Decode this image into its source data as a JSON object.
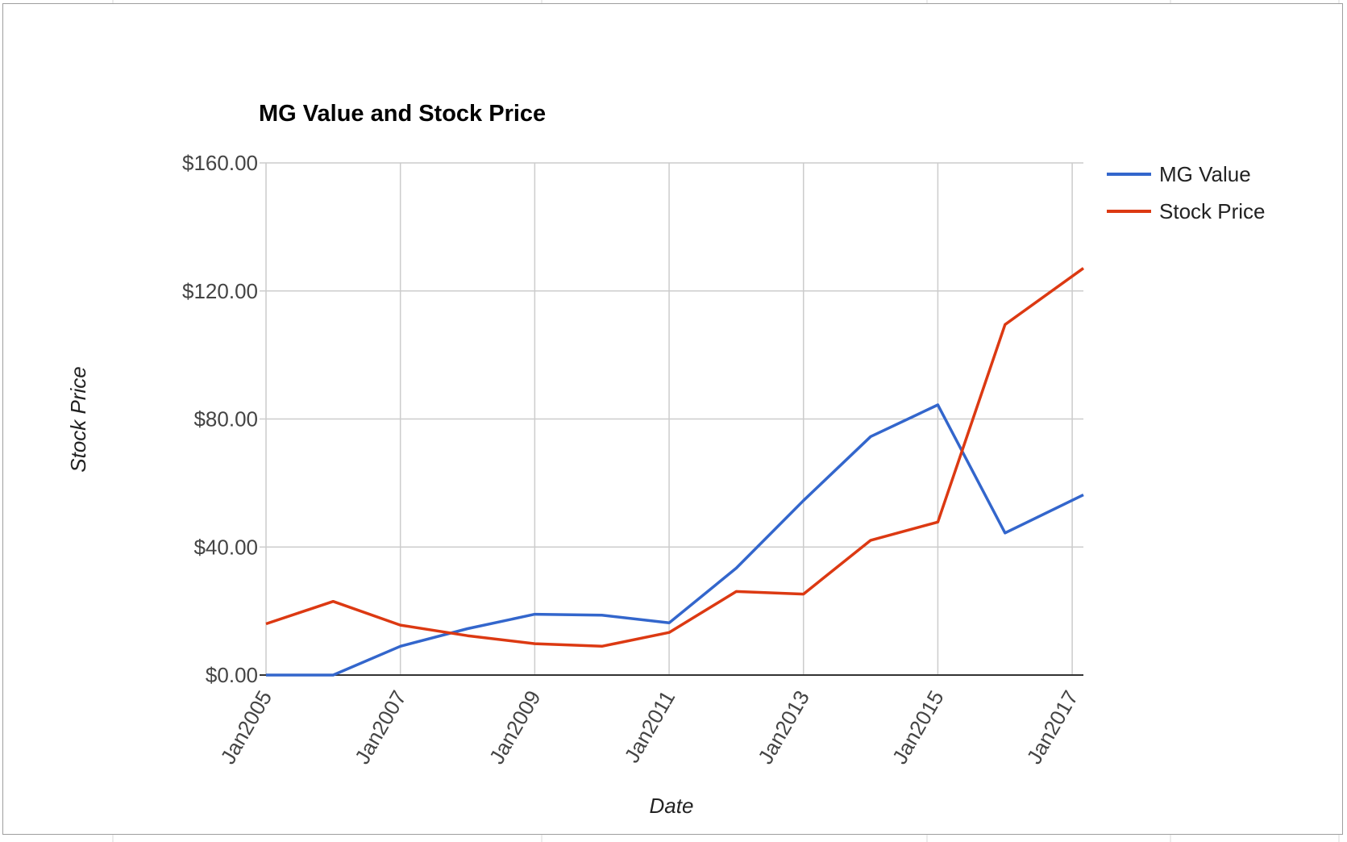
{
  "chart_data": {
    "type": "line",
    "title": "MG Value and Stock Price",
    "xlabel": "Date",
    "ylabel": "Stock Price",
    "x_tick_labels": [
      "Jan2005",
      "Jan2007",
      "Jan2009",
      "Jan2011",
      "Jan2013",
      "Jan2015",
      "Jan2017"
    ],
    "y_tick_labels": [
      "$0.00",
      "$40.00",
      "$80.00",
      "$120.00",
      "$160.00"
    ],
    "y_ticks": [
      0,
      40,
      80,
      120,
      160
    ],
    "ylim": [
      0,
      160
    ],
    "xlim": [
      "2005-01",
      "2017-03"
    ],
    "grid": true,
    "legend_position": "right",
    "x": [
      "2005-01",
      "2006-01",
      "2007-01",
      "2008-01",
      "2009-01",
      "2010-01",
      "2011-01",
      "2012-01",
      "2013-01",
      "2014-01",
      "2015-01",
      "2016-01",
      "2017-03"
    ],
    "series": [
      {
        "name": "MG Value",
        "color": "#3366cc",
        "values": [
          0,
          0,
          9,
          14.5,
          19,
          18.7,
          16.3,
          33.4,
          54.5,
          74.5,
          84.4,
          44.4,
          56.3
        ]
      },
      {
        "name": "Stock Price",
        "color": "#dc3912",
        "values": [
          16,
          23,
          15.6,
          12.3,
          9.8,
          9,
          13.3,
          26.1,
          25.3,
          42.1,
          47.8,
          109.5,
          127.1
        ]
      }
    ]
  }
}
